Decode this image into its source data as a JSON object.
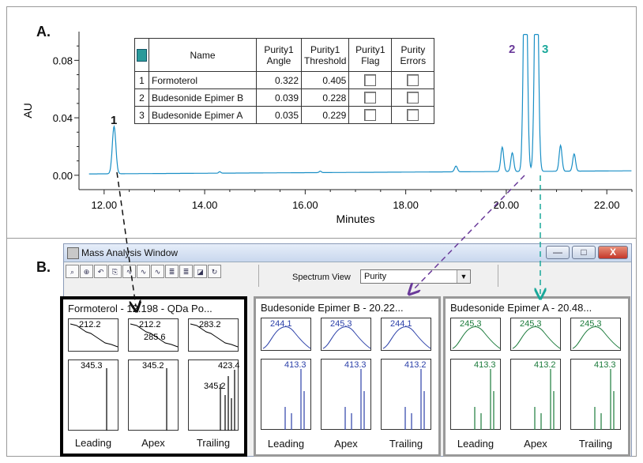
{
  "labels": {
    "a": "A.",
    "b": "B."
  },
  "chart_data": {
    "type": "line",
    "xlabel": "Minutes",
    "ylabel": "AU",
    "xlim": [
      11.5,
      22.5
    ],
    "ylim": [
      -0.01,
      0.1
    ],
    "xticks": [
      "12.00",
      "14.00",
      "16.00",
      "18.00",
      "20.00",
      "22.00"
    ],
    "yticks": [
      "0.00",
      "0.04",
      "0.08"
    ],
    "series": [
      {
        "name": "",
        "color": "#1a8fc6",
        "points": [
          [
            11.7,
            0.0005
          ],
          [
            12.1,
            0.0008
          ],
          [
            12.16,
            0.004
          ],
          [
            12.198,
            0.033
          ],
          [
            12.24,
            0.006
          ],
          [
            12.3,
            0.001
          ],
          [
            14.3,
            0.002
          ],
          [
            16.3,
            0.0022
          ],
          [
            19.0,
            0.006
          ],
          [
            19.9,
            0.02
          ],
          [
            20.1,
            0.016
          ],
          [
            20.21,
            0.1
          ],
          [
            20.48,
            0.1
          ],
          [
            20.6,
            0.004
          ],
          [
            21.1,
            0.02
          ],
          [
            21.35,
            0.014
          ],
          [
            22.5,
            0.003
          ]
        ]
      }
    ],
    "peaks": [
      {
        "label": "1",
        "time": 12.198
      },
      {
        "label": "2",
        "time": 20.21
      },
      {
        "label": "3",
        "time": 20.48
      }
    ]
  },
  "peak_labels": {
    "p1": "1",
    "p2": "2",
    "p3": "3"
  },
  "purity_table": {
    "headers": {
      "name": "Name",
      "angle": "Purity1 Angle",
      "threshold": "Purity1 Threshold",
      "flag": "Purity1 Flag",
      "errors": "Purity Errors"
    },
    "rows": [
      {
        "idx": "1",
        "name": "Formoterol",
        "angle": "0.322",
        "threshold": "0.405"
      },
      {
        "idx": "2",
        "name": "Budesonide Epimer B",
        "angle": "0.039",
        "threshold": "0.228"
      },
      {
        "idx": "3",
        "name": "Budesonide Epimer A",
        "angle": "0.035",
        "threshold": "0.229"
      }
    ]
  },
  "window": {
    "title": "Mass Analysis Window",
    "spectrum_view_label": "Spectrum View",
    "spectrum_view_value": "Purity",
    "min": "—",
    "max": "□",
    "close": "X"
  },
  "panels": [
    {
      "title": "Formoterol - 12.198 - QDa Po...",
      "color": "#000000",
      "uv": [
        "212.2",
        "212.2",
        "283.2",
        "285.6"
      ],
      "ms": [
        "345.3",
        "345.2",
        "423.4",
        "345.2"
      ],
      "xlabels": [
        "Leading",
        "Apex",
        "Trailing"
      ]
    },
    {
      "title": "Budesonide Epimer B - 20.22...",
      "color": "#2a3fa8",
      "uv": [
        "244.1",
        "245.3",
        "244.1"
      ],
      "ms": [
        "413.3",
        "413.3",
        "413.2"
      ],
      "xlabels": [
        "Leading",
        "Apex",
        "Trailing"
      ]
    },
    {
      "title": "Budesonide Epimer A - 20.48...",
      "color": "#1a7a3a",
      "uv": [
        "245.3",
        "245.3",
        "245.3"
      ],
      "ms": [
        "413.3",
        "413.2",
        "413.3"
      ],
      "xlabels": [
        "Leading",
        "Apex",
        "Trailing"
      ]
    }
  ]
}
